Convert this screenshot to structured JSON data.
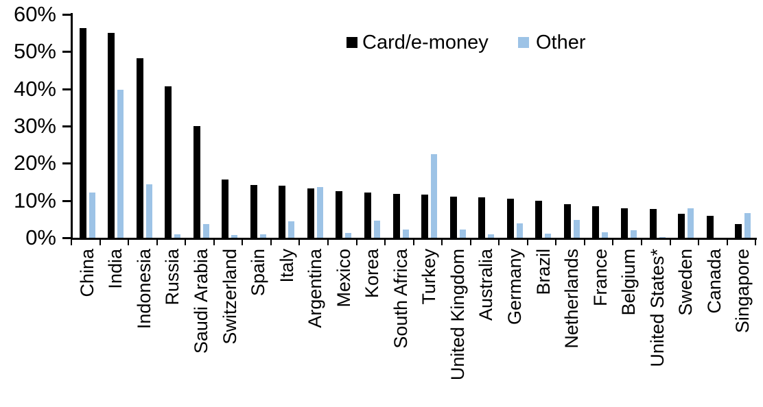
{
  "chart_data": {
    "type": "bar",
    "title": "",
    "xlabel": "",
    "ylabel": "",
    "ylim": [
      0,
      60
    ],
    "y_tick_step": 10,
    "y_ticks": [
      "0%",
      "10%",
      "20%",
      "30%",
      "40%",
      "50%",
      "60%"
    ],
    "grid": false,
    "legend_position": "top-center",
    "categories": [
      "China",
      "India",
      "Indonesia",
      "Russia",
      "Saudi Arabia",
      "Switzerland",
      "Spain",
      "Italy",
      "Argentina",
      "Mexico",
      "Korea",
      "South Africa",
      "Turkey",
      "United Kingdom",
      "Australia",
      "Germany",
      "Brazil",
      "Netherlands",
      "France",
      "Belgium",
      "United States*",
      "Sweden",
      "Canada",
      "Singapore"
    ],
    "series": [
      {
        "name": "Card/e-money",
        "color": "#000000",
        "values": [
          56.3,
          55.0,
          48.2,
          40.6,
          30.0,
          15.6,
          14.1,
          14.0,
          13.3,
          12.6,
          12.2,
          11.7,
          11.6,
          11.0,
          10.8,
          10.5,
          9.9,
          9.1,
          8.5,
          8.0,
          7.7,
          6.5,
          5.9,
          3.7
        ]
      },
      {
        "name": "Other",
        "color": "#9DC3E6",
        "values": [
          12.2,
          39.7,
          14.3,
          0.9,
          3.7,
          0.7,
          0.9,
          4.5,
          13.7,
          1.2,
          4.6,
          2.3,
          22.5,
          2.2,
          0.9,
          3.8,
          1.1,
          4.7,
          1.5,
          2.0,
          0.2,
          8.0,
          0,
          6.7
        ]
      }
    ]
  },
  "legend": {
    "items": [
      {
        "label": "Card/e-money",
        "color": "#000000"
      },
      {
        "label": "Other",
        "color": "#9DC3E6"
      }
    ]
  }
}
